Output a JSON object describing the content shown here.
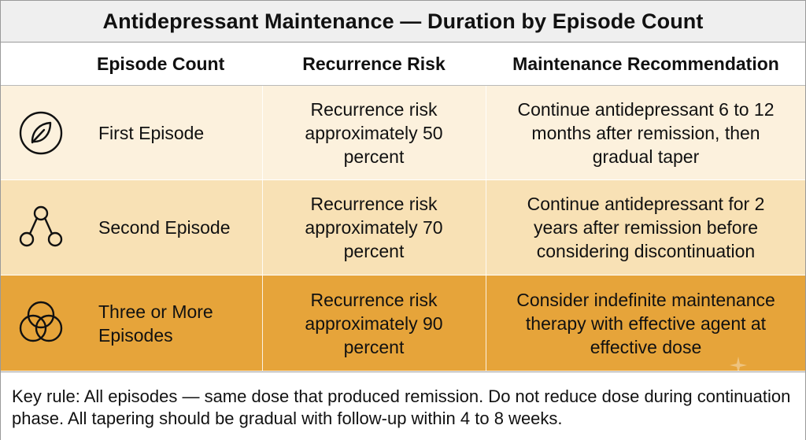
{
  "title": "Antidepressant Maintenance — Duration by Episode Count",
  "headers": {
    "episode_count": "Episode Count",
    "recurrence_risk": "Recurrence Risk",
    "maintenance": "Maintenance Recommendation"
  },
  "rows": [
    {
      "icon": "leaf-icon",
      "episode": "First Episode",
      "risk": "Recurrence risk approximately 50 percent",
      "recommendation": "Continue antidepressant 6 to 12 months after remission, then gradual taper",
      "color": "#fcf1dd"
    },
    {
      "icon": "three-nodes-icon",
      "episode": "Second Episode",
      "risk": "Recurrence risk approximately 70 percent",
      "recommendation": "Continue antidepressant for 2 years after remission before considering discontinuation",
      "color": "#f8e1b5"
    },
    {
      "icon": "overlapping-circles-icon",
      "episode": "Three or More Episodes",
      "risk": "Recurrence risk approximately 90 percent",
      "recommendation": "Consider indefinite maintenance therapy with effective agent at effective dose",
      "color": "#e6a43a"
    }
  ],
  "footer": "Key rule: All episodes — same dose that produced remission. Do not reduce dose during continuation phase. All tapering should be gradual with follow-up within 4 to 8 weeks."
}
